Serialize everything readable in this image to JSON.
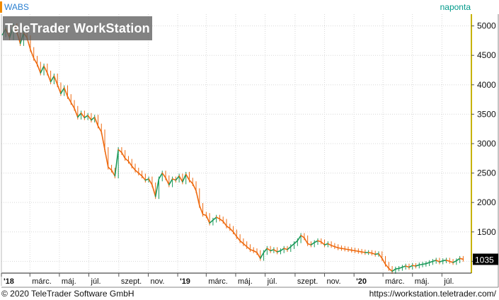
{
  "header": {
    "ticker": "WABS",
    "interval": "naponta",
    "watermark": "TeleTrader WorkStation"
  },
  "footer": {
    "copyright": "© 2020 TeleTrader Software GmbH",
    "url": "https://workstation.teletrader.com/"
  },
  "colors": {
    "up": "#1a9a5a",
    "down": "#ee6a10",
    "grid": "#d8d8d8",
    "axis": "#c7b300",
    "last_price_bg": "#000000"
  },
  "chart_data": {
    "type": "line",
    "title": "",
    "xlabel": "",
    "ylabel": "",
    "ylim": [
      800,
      5200
    ],
    "y_ticks": [
      1000,
      1500,
      2000,
      2500,
      3000,
      3500,
      4000,
      4500,
      5000
    ],
    "y_tick_labels": [
      "1000",
      "1500",
      "2000",
      "2500",
      "3000",
      "3500",
      "4000",
      "4500",
      "5000"
    ],
    "x_range": [
      "2018-01-01",
      "2020-08-31"
    ],
    "x_ticks": [
      {
        "label": "'18",
        "date": "2018-01-01",
        "bold": true
      },
      {
        "label": "márc.",
        "date": "2018-03-01",
        "bold": false
      },
      {
        "label": "máj.",
        "date": "2018-05-01",
        "bold": false
      },
      {
        "label": "júl.",
        "date": "2018-07-01",
        "bold": false
      },
      {
        "label": "szept.",
        "date": "2018-09-01",
        "bold": false
      },
      {
        "label": "nov.",
        "date": "2018-11-01",
        "bold": false
      },
      {
        "label": "'19",
        "date": "2019-01-01",
        "bold": true
      },
      {
        "label": "márc.",
        "date": "2019-03-01",
        "bold": false
      },
      {
        "label": "máj.",
        "date": "2019-05-01",
        "bold": false
      },
      {
        "label": "júl.",
        "date": "2019-07-01",
        "bold": false
      },
      {
        "label": "szept.",
        "date": "2019-09-01",
        "bold": false
      },
      {
        "label": "nov.",
        "date": "2019-11-01",
        "bold": false
      },
      {
        "label": "'20",
        "date": "2020-01-01",
        "bold": true
      },
      {
        "label": "márc.",
        "date": "2020-03-01",
        "bold": false
      },
      {
        "label": "máj.",
        "date": "2020-05-01",
        "bold": false
      },
      {
        "label": "júl.",
        "date": "2020-07-01",
        "bold": false
      }
    ],
    "last_price": 1035,
    "grid": true,
    "series": [
      {
        "points": [
          [
            "2018-01-03",
            4850
          ],
          [
            "2018-01-10",
            4950
          ],
          [
            "2018-01-18",
            4800
          ],
          [
            "2018-01-26",
            5000
          ],
          [
            "2018-02-02",
            4900
          ],
          [
            "2018-02-09",
            4700
          ],
          [
            "2018-02-16",
            4880
          ],
          [
            "2018-02-23",
            4800
          ],
          [
            "2018-03-02",
            4600
          ],
          [
            "2018-03-09",
            4450
          ],
          [
            "2018-03-16",
            4350
          ],
          [
            "2018-03-23",
            4200
          ],
          [
            "2018-03-30",
            4320
          ],
          [
            "2018-04-06",
            4200
          ],
          [
            "2018-04-13",
            4050
          ],
          [
            "2018-04-20",
            4150
          ],
          [
            "2018-04-27",
            4000
          ],
          [
            "2018-05-04",
            3850
          ],
          [
            "2018-05-11",
            3950
          ],
          [
            "2018-05-18",
            3800
          ],
          [
            "2018-05-25",
            3700
          ],
          [
            "2018-06-01",
            3600
          ],
          [
            "2018-06-08",
            3450
          ],
          [
            "2018-06-15",
            3520
          ],
          [
            "2018-06-22",
            3440
          ],
          [
            "2018-06-29",
            3480
          ],
          [
            "2018-07-06",
            3400
          ],
          [
            "2018-07-13",
            3450
          ],
          [
            "2018-07-20",
            3300
          ],
          [
            "2018-07-27",
            3200
          ],
          [
            "2018-08-03",
            2900
          ],
          [
            "2018-08-10",
            2600
          ],
          [
            "2018-08-17",
            2550
          ],
          [
            "2018-08-24",
            2450
          ],
          [
            "2018-08-31",
            2900
          ],
          [
            "2018-09-07",
            2850
          ],
          [
            "2018-09-14",
            2750
          ],
          [
            "2018-09-21",
            2700
          ],
          [
            "2018-09-28",
            2620
          ],
          [
            "2018-10-05",
            2550
          ],
          [
            "2018-10-12",
            2500
          ],
          [
            "2018-10-19",
            2450
          ],
          [
            "2018-10-26",
            2380
          ],
          [
            "2018-11-02",
            2400
          ],
          [
            "2018-11-09",
            2300
          ],
          [
            "2018-11-16",
            2100
          ],
          [
            "2018-11-23",
            2400
          ],
          [
            "2018-11-30",
            2500
          ],
          [
            "2018-12-07",
            2420
          ],
          [
            "2018-12-14",
            2300
          ],
          [
            "2018-12-21",
            2400
          ],
          [
            "2018-12-28",
            2380
          ],
          [
            "2019-01-04",
            2450
          ],
          [
            "2019-01-11",
            2350
          ],
          [
            "2019-01-18",
            2480
          ],
          [
            "2019-01-25",
            2380
          ],
          [
            "2019-02-01",
            2320
          ],
          [
            "2019-02-08",
            2200
          ],
          [
            "2019-02-15",
            1950
          ],
          [
            "2019-02-22",
            1800
          ],
          [
            "2019-03-01",
            1780
          ],
          [
            "2019-03-08",
            1650
          ],
          [
            "2019-03-15",
            1700
          ],
          [
            "2019-03-22",
            1750
          ],
          [
            "2019-03-29",
            1720
          ],
          [
            "2019-04-05",
            1680
          ],
          [
            "2019-04-12",
            1600
          ],
          [
            "2019-04-19",
            1560
          ],
          [
            "2019-04-26",
            1500
          ],
          [
            "2019-05-03",
            1420
          ],
          [
            "2019-05-10",
            1350
          ],
          [
            "2019-05-17",
            1300
          ],
          [
            "2019-05-24",
            1250
          ],
          [
            "2019-05-31",
            1200
          ],
          [
            "2019-06-07",
            1180
          ],
          [
            "2019-06-14",
            1150
          ],
          [
            "2019-06-21",
            1050
          ],
          [
            "2019-06-28",
            1150
          ],
          [
            "2019-07-05",
            1220
          ],
          [
            "2019-07-12",
            1180
          ],
          [
            "2019-07-19",
            1200
          ],
          [
            "2019-07-26",
            1160
          ],
          [
            "2019-08-02",
            1180
          ],
          [
            "2019-08-09",
            1220
          ],
          [
            "2019-08-16",
            1200
          ],
          [
            "2019-08-23",
            1250
          ],
          [
            "2019-08-30",
            1300
          ],
          [
            "2019-09-06",
            1350
          ],
          [
            "2019-09-13",
            1440
          ],
          [
            "2019-09-20",
            1400
          ],
          [
            "2019-09-27",
            1300
          ],
          [
            "2019-10-04",
            1280
          ],
          [
            "2019-10-11",
            1320
          ],
          [
            "2019-10-18",
            1350
          ],
          [
            "2019-10-25",
            1330
          ],
          [
            "2019-11-01",
            1280
          ],
          [
            "2019-11-08",
            1300
          ],
          [
            "2019-11-15",
            1270
          ],
          [
            "2019-11-22",
            1250
          ],
          [
            "2019-11-29",
            1230
          ],
          [
            "2019-12-06",
            1220
          ],
          [
            "2019-12-13",
            1210
          ],
          [
            "2019-12-20",
            1200
          ],
          [
            "2019-12-27",
            1190
          ],
          [
            "2020-01-03",
            1180
          ],
          [
            "2020-01-10",
            1170
          ],
          [
            "2020-01-17",
            1160
          ],
          [
            "2020-01-24",
            1150
          ],
          [
            "2020-01-31",
            1150
          ],
          [
            "2020-02-07",
            1140
          ],
          [
            "2020-02-14",
            1120
          ],
          [
            "2020-02-21",
            1130
          ],
          [
            "2020-02-28",
            1050
          ],
          [
            "2020-03-06",
            950
          ],
          [
            "2020-03-13",
            880
          ],
          [
            "2020-03-20",
            830
          ],
          [
            "2020-03-27",
            870
          ],
          [
            "2020-04-03",
            880
          ],
          [
            "2020-04-10",
            900
          ],
          [
            "2020-04-17",
            920
          ],
          [
            "2020-04-24",
            900
          ],
          [
            "2020-05-01",
            930
          ],
          [
            "2020-05-08",
            920
          ],
          [
            "2020-05-15",
            940
          ],
          [
            "2020-05-22",
            950
          ],
          [
            "2020-05-29",
            960
          ],
          [
            "2020-06-05",
            980
          ],
          [
            "2020-06-12",
            1000
          ],
          [
            "2020-06-19",
            1020
          ],
          [
            "2020-06-26",
            990
          ],
          [
            "2020-07-03",
            1010
          ],
          [
            "2020-07-10",
            1020
          ],
          [
            "2020-07-17",
            1000
          ],
          [
            "2020-07-24",
            980
          ],
          [
            "2020-07-31",
            1010
          ],
          [
            "2020-08-07",
            1050
          ],
          [
            "2020-08-14",
            1035
          ]
        ]
      }
    ]
  }
}
